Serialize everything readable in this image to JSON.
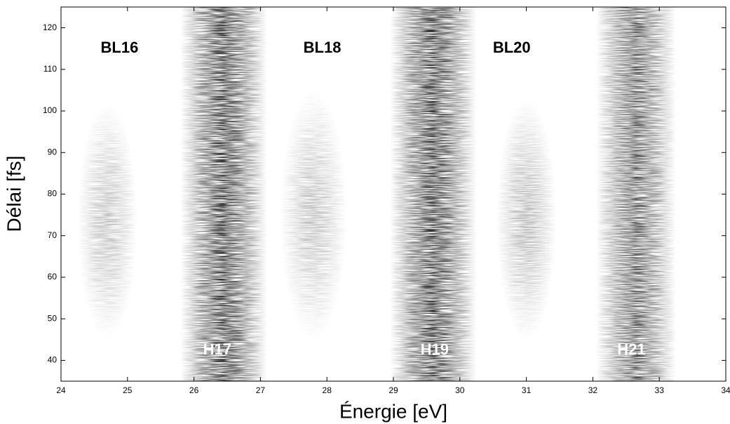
{
  "chart_data": {
    "type": "heatmap",
    "xlabel": "Énergie [eV]",
    "ylabel": "Délai [fs]",
    "xlim": [
      24,
      34
    ],
    "ylim": [
      35,
      125
    ],
    "xticks": [
      24,
      25,
      26,
      27,
      28,
      29,
      30,
      31,
      32,
      33,
      34
    ],
    "yticks": [
      40,
      50,
      60,
      70,
      80,
      90,
      100,
      110,
      120
    ],
    "color": "#000000",
    "bands": [
      {
        "name": "BL16",
        "center": 24.7,
        "width": 0.9,
        "ymin": 45,
        "ymax": 102,
        "intensity": 0.3,
        "label_x": 24.88,
        "label_y": 115,
        "label_color": "#000000"
      },
      {
        "name": "H17",
        "center": 26.45,
        "width": 1.3,
        "ymin": 35,
        "ymax": 125,
        "intensity": 0.85,
        "label_x": 26.35,
        "label_y": 42.4,
        "label_color": "#ffffff"
      },
      {
        "name": "BL18",
        "center": 27.8,
        "width": 1.0,
        "ymin": 45,
        "ymax": 105,
        "intensity": 0.3,
        "label_x": 27.93,
        "label_y": 115,
        "label_color": "#000000"
      },
      {
        "name": "H19",
        "center": 29.6,
        "width": 1.3,
        "ymin": 35,
        "ymax": 125,
        "intensity": 0.85,
        "label_x": 29.62,
        "label_y": 42.4,
        "label_color": "#ffffff"
      },
      {
        "name": "BL20",
        "center": 31.0,
        "width": 0.9,
        "ymin": 45,
        "ymax": 103,
        "intensity": 0.35,
        "label_x": 30.78,
        "label_y": 115,
        "label_color": "#000000"
      },
      {
        "name": "H21",
        "center": 32.65,
        "width": 1.2,
        "ymin": 35,
        "ymax": 125,
        "intensity": 0.7,
        "label_x": 32.58,
        "label_y": 42.4,
        "label_color": "#ffffff"
      }
    ]
  }
}
